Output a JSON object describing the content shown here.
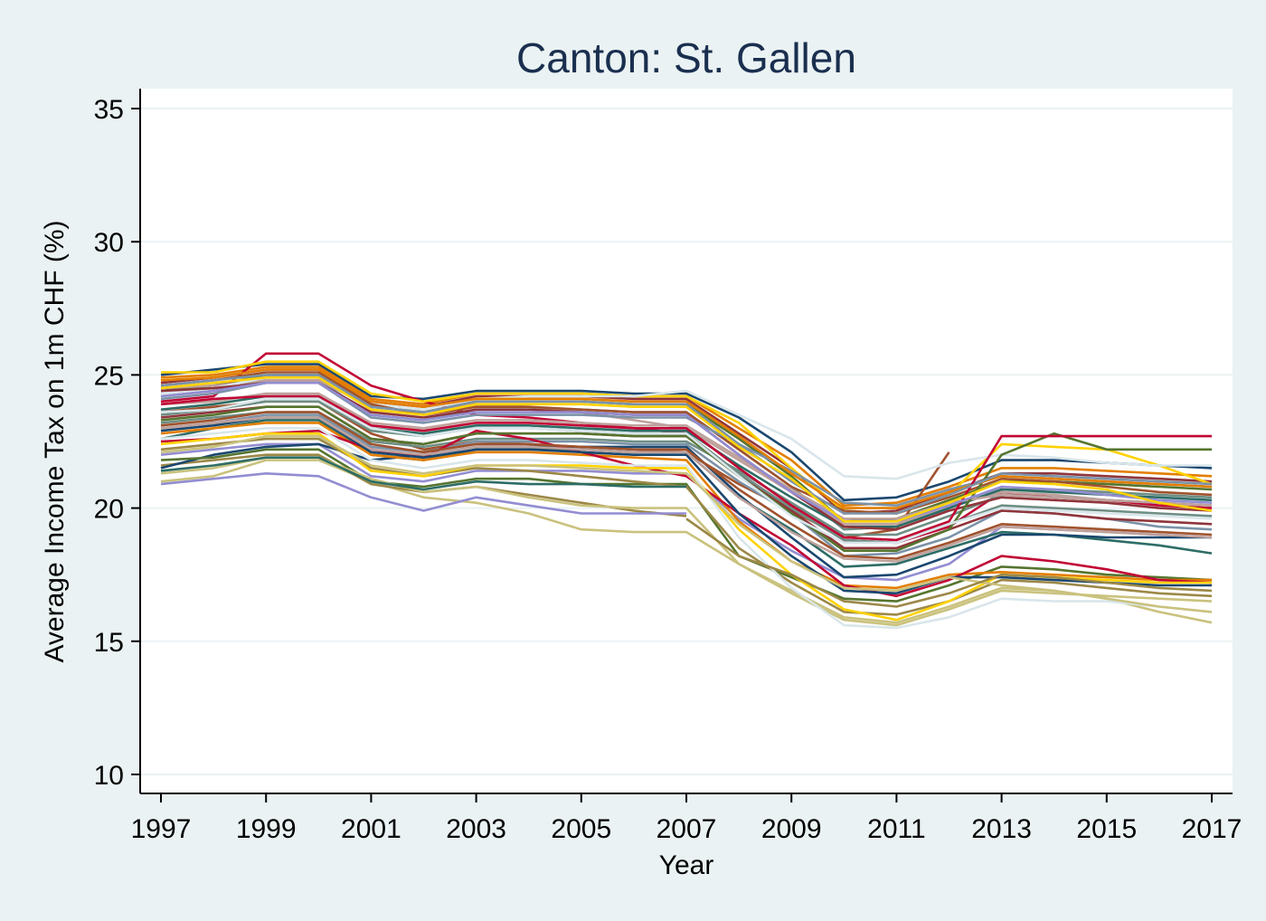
{
  "chart_data": {
    "type": "line",
    "title": "Canton: St. Gallen",
    "xlabel": "Year",
    "ylabel": "Average Income Tax on 1m CHF (%)",
    "xlim": [
      1997,
      2017
    ],
    "ylim": [
      10,
      35
    ],
    "xticks": [
      "1997",
      "1999",
      "2001",
      "2003",
      "2005",
      "2007",
      "2009",
      "2011",
      "2013",
      "2015",
      "2017"
    ],
    "yticks": [
      "10",
      "15",
      "20",
      "25",
      "30",
      "35"
    ],
    "grid": true,
    "legend": "none",
    "x": [
      1997,
      1998,
      1999,
      2000,
      2001,
      2002,
      2003,
      2004,
      2005,
      2006,
      2007,
      2008,
      2009,
      2010,
      2011,
      2012,
      2013,
      2014,
      2015,
      2016,
      2017
    ],
    "series": [
      {
        "color": "#1a476f",
        "values": [
          25.0,
          25.2,
          25.4,
          25.4,
          24.2,
          24.1,
          24.4,
          24.4,
          24.4,
          24.3,
          24.3,
          23.4,
          22.1,
          20.3,
          20.4,
          21.0,
          21.8,
          21.8,
          21.7,
          21.6,
          21.5
        ]
      },
      {
        "color": "#90353b",
        "values": [
          24.7,
          24.9,
          25.2,
          25.2,
          24.0,
          23.8,
          24.2,
          24.2,
          24.2,
          24.1,
          24.1,
          22.8,
          21.5,
          19.8,
          19.9,
          20.6,
          21.3,
          21.3,
          21.2,
          21.1,
          21.0
        ]
      },
      {
        "color": "#55752f",
        "values": [
          24.4,
          24.6,
          25.0,
          25.0,
          23.8,
          23.6,
          24.0,
          24.0,
          24.0,
          23.9,
          23.9,
          22.6,
          21.2,
          19.5,
          19.6,
          20.3,
          21.0,
          21.0,
          20.9,
          20.8,
          20.7
        ]
      },
      {
        "color": "#e37e00",
        "values": [
          24.9,
          25.0,
          25.3,
          25.3,
          24.1,
          23.9,
          24.3,
          24.3,
          24.3,
          24.2,
          24.2,
          23.0,
          21.8,
          20.1,
          20.2,
          20.8,
          21.5,
          21.5,
          21.4,
          21.3,
          21.2
        ]
      },
      {
        "color": "#6e8e84",
        "values": [
          24.2,
          24.4,
          24.8,
          24.8,
          23.5,
          23.3,
          23.7,
          23.7,
          23.7,
          23.6,
          23.6,
          22.2,
          20.8,
          19.2,
          19.3,
          20.0,
          20.7,
          20.7,
          20.6,
          20.5,
          20.4
        ]
      },
      {
        "color": "#c10534",
        "values": [
          24.0,
          24.2,
          25.8,
          25.8,
          24.6,
          24.0,
          23.5,
          23.4,
          23.2,
          23.0,
          22.8,
          21.3,
          20.0,
          18.8,
          18.7,
          19.3,
          20.6,
          20.4,
          20.3,
          20.1,
          20.0
        ]
      },
      {
        "color": "#938dd2",
        "values": [
          22.0,
          22.2,
          22.4,
          22.4,
          21.2,
          21.0,
          21.4,
          21.4,
          21.4,
          21.3,
          21.3,
          19.6,
          18.4,
          17.4,
          17.3,
          17.9,
          19.3,
          19.2,
          19.1,
          19.0,
          18.9
        ]
      },
      {
        "color": "#cac27e",
        "values": [
          21.0,
          21.2,
          21.8,
          21.8,
          21.0,
          20.4,
          20.2,
          19.8,
          19.2,
          19.1,
          19.1,
          17.9,
          16.9,
          15.9,
          15.7,
          16.3,
          17.0,
          16.9,
          16.6,
          16.1,
          15.7
        ]
      },
      {
        "color": "#a0522d",
        "values": [
          23.6,
          23.8,
          24.0,
          24.0,
          22.8,
          22.2,
          22.5,
          22.4,
          22.3,
          22.2,
          22.1,
          20.9,
          19.9,
          18.9,
          19.2,
          22.1,
          null,
          null,
          null,
          null,
          null
        ]
      },
      {
        "color": "#7b92a8",
        "values": [
          23.0,
          23.2,
          23.5,
          23.5,
          22.3,
          22.1,
          22.5,
          22.5,
          22.5,
          22.4,
          22.4,
          21.0,
          19.8,
          18.2,
          18.3,
          18.9,
          19.9,
          19.8,
          19.6,
          19.3,
          19.2
        ]
      },
      {
        "color": "#2d6d66",
        "values": [
          22.6,
          23.0,
          23.3,
          23.3,
          22.0,
          21.8,
          22.2,
          22.2,
          22.2,
          22.1,
          22.1,
          20.4,
          19.2,
          17.8,
          17.9,
          18.5,
          19.1,
          19.0,
          18.8,
          18.6,
          18.3
        ]
      },
      {
        "color": "#9c8847",
        "values": [
          21.6,
          21.8,
          22.0,
          22.0,
          20.9,
          20.6,
          20.8,
          20.5,
          20.2,
          19.9,
          19.7,
          null,
          null,
          null,
          null,
          null,
          null,
          null,
          null,
          null,
          null
        ]
      },
      {
        "color": "#bfa19c",
        "values": [
          24.5,
          24.6,
          24.8,
          24.8,
          23.8,
          23.6,
          23.9,
          23.8,
          23.6,
          23.3,
          23.0,
          21.8,
          20.6,
          19.4,
          19.4,
          20.1,
          20.6,
          20.5,
          20.3,
          20.2,
          20.1
        ]
      },
      {
        "color": "#ffd200",
        "values": [
          25.1,
          25.1,
          25.5,
          25.5,
          24.3,
          24.0,
          24.3,
          24.3,
          24.3,
          24.2,
          24.2,
          23.2,
          21.5,
          19.9,
          19.8,
          20.5,
          22.4,
          22.3,
          22.2,
          21.6,
          20.9
        ]
      },
      {
        "color": "#d9e6eb",
        "values": [
          24.3,
          24.5,
          24.9,
          24.9,
          23.9,
          23.7,
          24.1,
          24.2,
          24.2,
          24.2,
          24.4,
          23.5,
          22.6,
          21.2,
          21.1,
          21.7,
          22.0,
          21.9,
          21.7,
          21.6,
          21.6
        ]
      },
      {
        "color": "#1a476f",
        "values": [
          21.5,
          22.0,
          22.3,
          22.4,
          21.8,
          22.0,
          22.3,
          22.3,
          22.3,
          22.3,
          22.3,
          20.5,
          18.9,
          17.4,
          17.5,
          18.2,
          19.0,
          19.0,
          18.9,
          18.9,
          18.9
        ]
      },
      {
        "color": "#90353b",
        "values": [
          23.4,
          23.6,
          23.8,
          23.8,
          22.6,
          22.4,
          22.8,
          22.8,
          22.8,
          22.7,
          22.7,
          21.2,
          19.9,
          18.5,
          18.5,
          19.2,
          19.9,
          19.8,
          19.6,
          19.5,
          19.4
        ]
      },
      {
        "color": "#55752f",
        "values": [
          21.8,
          21.9,
          22.2,
          22.2,
          21.0,
          20.8,
          21.1,
          21.1,
          20.9,
          20.9,
          20.9,
          18.2,
          17.4,
          16.6,
          16.5,
          17.1,
          17.8,
          17.7,
          17.5,
          17.4,
          17.3
        ]
      },
      {
        "color": "#e37e00",
        "values": [
          22.8,
          23.0,
          23.2,
          23.2,
          22.0,
          21.8,
          22.1,
          22.1,
          22.0,
          21.9,
          21.8,
          19.5,
          18.0,
          17.1,
          17.0,
          17.5,
          17.6,
          17.5,
          17.4,
          17.3,
          17.3
        ]
      },
      {
        "color": "#6e8e84",
        "values": [
          23.2,
          23.4,
          23.6,
          23.6,
          22.5,
          22.3,
          22.6,
          22.6,
          22.6,
          22.5,
          22.5,
          21.4,
          20.2,
          19.0,
          19.0,
          19.7,
          20.5,
          20.4,
          20.3,
          20.2,
          20.1
        ]
      },
      {
        "color": "#c10534",
        "values": [
          22.5,
          22.6,
          22.8,
          22.9,
          22.2,
          21.9,
          22.9,
          22.6,
          22.1,
          21.6,
          21.2,
          19.8,
          18.6,
          17.1,
          16.7,
          17.3,
          18.2,
          18.0,
          17.7,
          17.3,
          17.2
        ]
      },
      {
        "color": "#938dd2",
        "values": [
          20.9,
          21.1,
          21.3,
          21.2,
          20.4,
          19.9,
          20.4,
          20.1,
          19.8,
          19.8,
          19.8,
          null,
          null,
          null,
          null,
          null,
          null,
          null,
          null,
          null,
          null
        ]
      },
      {
        "color": "#cac27e",
        "values": [
          21.3,
          21.5,
          21.9,
          21.9,
          21.1,
          20.6,
          20.8,
          20.4,
          20.1,
          20.0,
          20.0,
          17.9,
          16.8,
          15.8,
          15.6,
          16.2,
          16.9,
          16.8,
          16.7,
          16.6,
          16.5
        ]
      },
      {
        "color": "#a0522d",
        "values": [
          24.6,
          24.8,
          25.1,
          25.1,
          23.9,
          23.5,
          23.8,
          23.8,
          23.7,
          23.6,
          23.6,
          22.2,
          20.8,
          19.9,
          19.8,
          20.4,
          21.1,
          21.0,
          20.8,
          20.6,
          20.5
        ]
      },
      {
        "color": "#7b92a8",
        "values": [
          24.1,
          24.3,
          24.7,
          24.7,
          23.4,
          23.2,
          23.5,
          23.5,
          23.5,
          23.4,
          23.4,
          22.4,
          21.4,
          20.2,
          20.1,
          20.7,
          21.2,
          21.1,
          21.0,
          20.9,
          20.8
        ]
      },
      {
        "color": "#2d6d66",
        "values": [
          23.7,
          23.9,
          24.2,
          24.2,
          23.0,
          22.8,
          23.1,
          23.1,
          23.0,
          22.9,
          22.9,
          21.6,
          20.4,
          19.3,
          19.3,
          20.0,
          20.7,
          20.6,
          20.5,
          20.4,
          20.3
        ]
      },
      {
        "color": "#9c8847",
        "values": [
          22.2,
          22.4,
          22.6,
          22.6,
          21.5,
          21.2,
          21.5,
          21.4,
          21.2,
          21.0,
          20.8,
          18.5,
          17.2,
          16.1,
          16.0,
          16.5,
          17.3,
          17.2,
          17.0,
          16.8,
          16.7
        ]
      },
      {
        "color": "#bfa19c",
        "values": [
          23.9,
          24.0,
          24.3,
          24.3,
          23.2,
          23.0,
          23.3,
          23.3,
          23.2,
          23.1,
          23.1,
          21.9,
          20.7,
          19.6,
          19.6,
          20.2,
          20.5,
          20.4,
          20.3,
          20.2,
          20.1
        ]
      },
      {
        "color": "#ffd200",
        "values": [
          22.4,
          22.6,
          22.8,
          22.8,
          21.4,
          21.2,
          21.6,
          21.6,
          21.6,
          21.5,
          21.5,
          19.2,
          17.5,
          16.2,
          15.8,
          16.5,
          17.5,
          17.4,
          17.3,
          17.2,
          17.2
        ]
      },
      {
        "color": "#d9e6eb",
        "values": [
          22.6,
          22.8,
          23.0,
          23.0,
          21.8,
          21.5,
          21.8,
          21.8,
          21.7,
          21.6,
          21.6,
          18.9,
          17.0,
          15.6,
          15.5,
          15.9,
          16.6,
          16.5,
          16.5,
          16.3,
          16.1
        ]
      },
      {
        "color": "#1a476f",
        "values": [
          22.9,
          23.1,
          23.4,
          23.4,
          22.1,
          21.9,
          22.2,
          22.2,
          22.1,
          22.0,
          22.0,
          19.8,
          18.2,
          16.9,
          16.8,
          17.4,
          17.4,
          17.3,
          17.2,
          17.1,
          17.1
        ]
      },
      {
        "color": "#90353b",
        "values": [
          24.4,
          24.5,
          24.7,
          24.7,
          23.6,
          23.4,
          23.7,
          23.7,
          23.6,
          23.5,
          23.5,
          22.0,
          20.6,
          19.3,
          19.2,
          19.9,
          20.4,
          20.3,
          20.2,
          20.0,
          19.9
        ]
      },
      {
        "color": "#55752f",
        "values": [
          23.3,
          23.5,
          23.8,
          23.8,
          22.6,
          22.4,
          22.8,
          22.8,
          22.8,
          22.7,
          22.7,
          21.2,
          19.8,
          18.4,
          18.4,
          19.2,
          22.0,
          22.8,
          22.2,
          22.2,
          22.2
        ]
      },
      {
        "color": "#e37e00",
        "values": [
          24.8,
          24.9,
          25.2,
          25.2,
          24.0,
          23.8,
          24.1,
          24.1,
          24.1,
          24.0,
          24.0,
          22.7,
          21.3,
          20.0,
          20.0,
          20.6,
          21.2,
          21.1,
          21.0,
          20.9,
          20.8
        ]
      },
      {
        "color": "#6e8e84",
        "values": [
          23.5,
          23.7,
          24.0,
          24.0,
          22.9,
          22.7,
          23.0,
          23.0,
          22.9,
          22.8,
          22.8,
          21.3,
          20.0,
          18.8,
          18.7,
          19.4,
          20.1,
          20.0,
          19.9,
          19.8,
          19.7
        ]
      },
      {
        "color": "#c10534",
        "values": [
          23.9,
          24.1,
          24.2,
          24.2,
          23.1,
          22.9,
          23.2,
          23.2,
          23.1,
          23.0,
          23.0,
          21.5,
          20.1,
          18.9,
          18.8,
          19.5,
          22.7,
          22.7,
          22.7,
          22.7,
          22.7
        ]
      },
      {
        "color": "#938dd2",
        "values": [
          24.2,
          24.4,
          24.7,
          24.7,
          23.5,
          23.3,
          23.6,
          23.6,
          23.6,
          23.5,
          23.5,
          22.0,
          20.6,
          19.5,
          19.5,
          20.1,
          20.8,
          20.7,
          20.5,
          20.3,
          20.2
        ]
      },
      {
        "color": "#cac27e",
        "values": [
          22.1,
          22.3,
          22.7,
          22.7,
          21.6,
          21.3,
          21.6,
          21.6,
          21.5,
          21.4,
          21.3,
          19.4,
          18.0,
          17.0,
          16.9,
          17.4,
          17.1,
          16.9,
          16.6,
          16.3,
          16.1
        ]
      },
      {
        "color": "#a0522d",
        "values": [
          23.1,
          23.3,
          23.6,
          23.6,
          22.4,
          22.1,
          22.4,
          22.4,
          22.3,
          22.2,
          22.2,
          20.7,
          19.4,
          18.2,
          18.1,
          18.7,
          19.4,
          19.3,
          19.2,
          19.1,
          19.0
        ]
      },
      {
        "color": "#7b92a8",
        "values": [
          24.6,
          24.8,
          25.0,
          25.0,
          23.8,
          23.6,
          24.0,
          24.0,
          24.0,
          23.9,
          23.9,
          22.4,
          21.0,
          19.8,
          19.8,
          20.5,
          21.3,
          21.2,
          21.1,
          21.0,
          20.9
        ]
      },
      {
        "color": "#2d6d66",
        "values": [
          21.4,
          21.6,
          21.9,
          21.9,
          21.0,
          20.7,
          21.0,
          20.9,
          20.9,
          20.8,
          20.8,
          null,
          null,
          null,
          null,
          null,
          null,
          null,
          null,
          null,
          null
        ]
      },
      {
        "color": "#9c8847",
        "values": [
          null,
          null,
          null,
          null,
          null,
          null,
          null,
          null,
          null,
          null,
          19.6,
          18.2,
          17.5,
          16.5,
          16.3,
          16.8,
          17.5,
          17.4,
          17.2,
          17.0,
          16.9
        ]
      },
      {
        "color": "#bfa19c",
        "values": [
          23.0,
          23.2,
          23.4,
          23.4,
          22.2,
          22.0,
          22.3,
          22.3,
          22.2,
          22.1,
          22.1,
          20.4,
          19.1,
          18.1,
          18.0,
          18.6,
          19.3,
          19.2,
          19.1,
          19.0,
          18.9
        ]
      },
      {
        "color": "#ffd200",
        "values": [
          24.5,
          24.7,
          24.9,
          24.9,
          23.7,
          23.5,
          23.9,
          23.9,
          23.9,
          23.8,
          23.8,
          22.3,
          21.1,
          19.5,
          19.5,
          20.2,
          21.0,
          20.9,
          20.7,
          20.2,
          19.9
        ]
      },
      {
        "color": "#d9e6eb",
        "values": [
          23.6,
          23.7,
          24.1,
          24.1,
          23.0,
          22.7,
          23.0,
          23.0,
          22.9,
          22.8,
          22.8,
          21.2,
          19.7,
          18.7,
          18.7,
          19.4,
          20.0,
          19.9,
          19.8,
          19.7,
          19.6
        ]
      }
    ]
  }
}
